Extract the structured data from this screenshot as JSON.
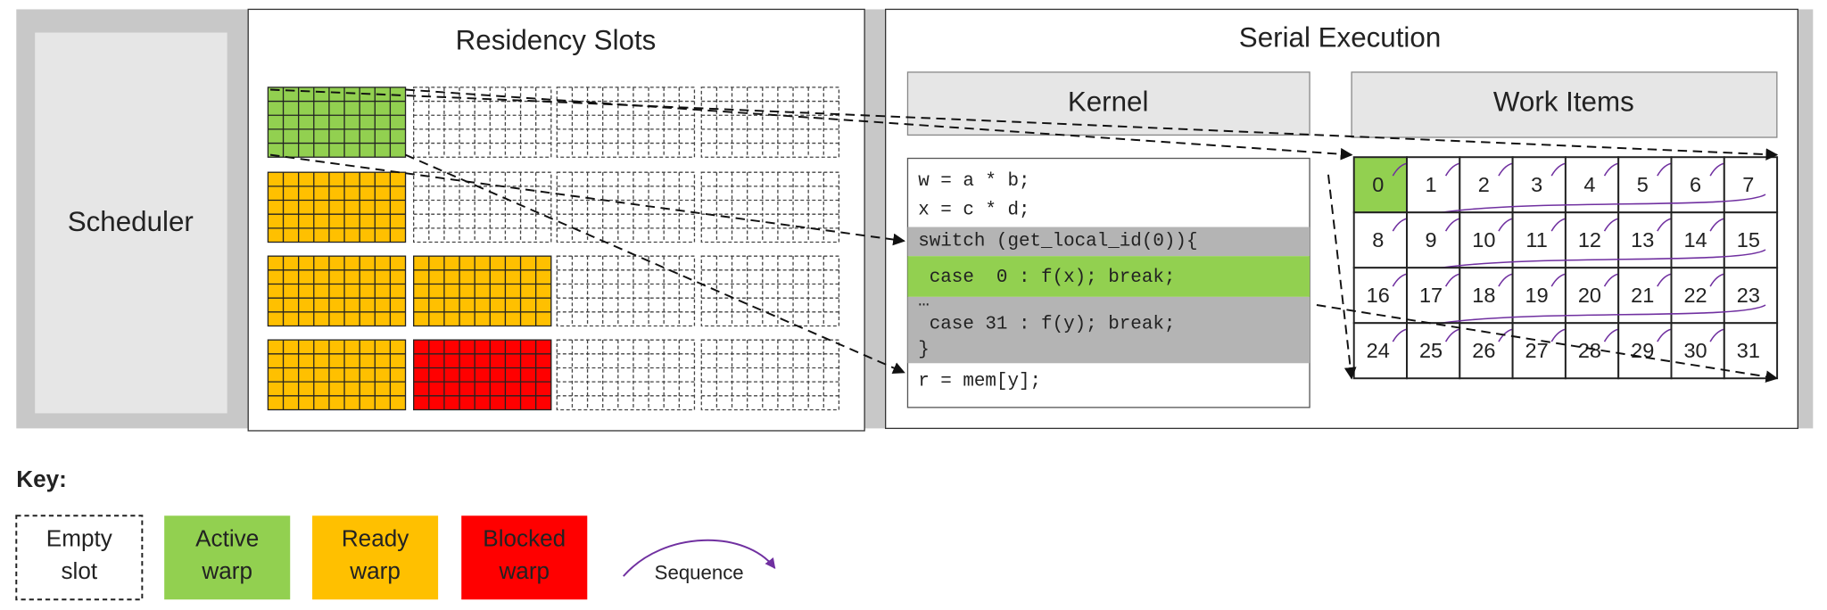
{
  "scheduler": {
    "label": "Scheduler"
  },
  "residency": {
    "title": "Residency Slots"
  },
  "serial": {
    "title": "Serial Execution",
    "kernel": {
      "title": "Kernel",
      "code": [
        "w = a * b;",
        "x = c * d;",
        "switch (get_local_id(0)){",
        " case  0 : f(x); break;",
        "…",
        " case 31 : f(y); break;",
        "}",
        "r = mem[y];"
      ]
    },
    "work_items": {
      "title": "Work Items",
      "items": [
        0,
        1,
        2,
        3,
        4,
        5,
        6,
        7,
        8,
        9,
        10,
        11,
        12,
        13,
        14,
        15,
        16,
        17,
        18,
        19,
        20,
        21,
        22,
        23,
        24,
        25,
        26,
        27,
        28,
        29,
        30,
        31
      ]
    }
  },
  "key": {
    "title": "Key:",
    "entries": [
      {
        "label": [
          "Empty",
          "slot"
        ]
      },
      {
        "label": [
          "Active",
          "warp"
        ]
      },
      {
        "label": [
          "Ready",
          "warp"
        ]
      },
      {
        "label": [
          "Blocked",
          "warp"
        ]
      }
    ],
    "sequence": "Sequence"
  }
}
